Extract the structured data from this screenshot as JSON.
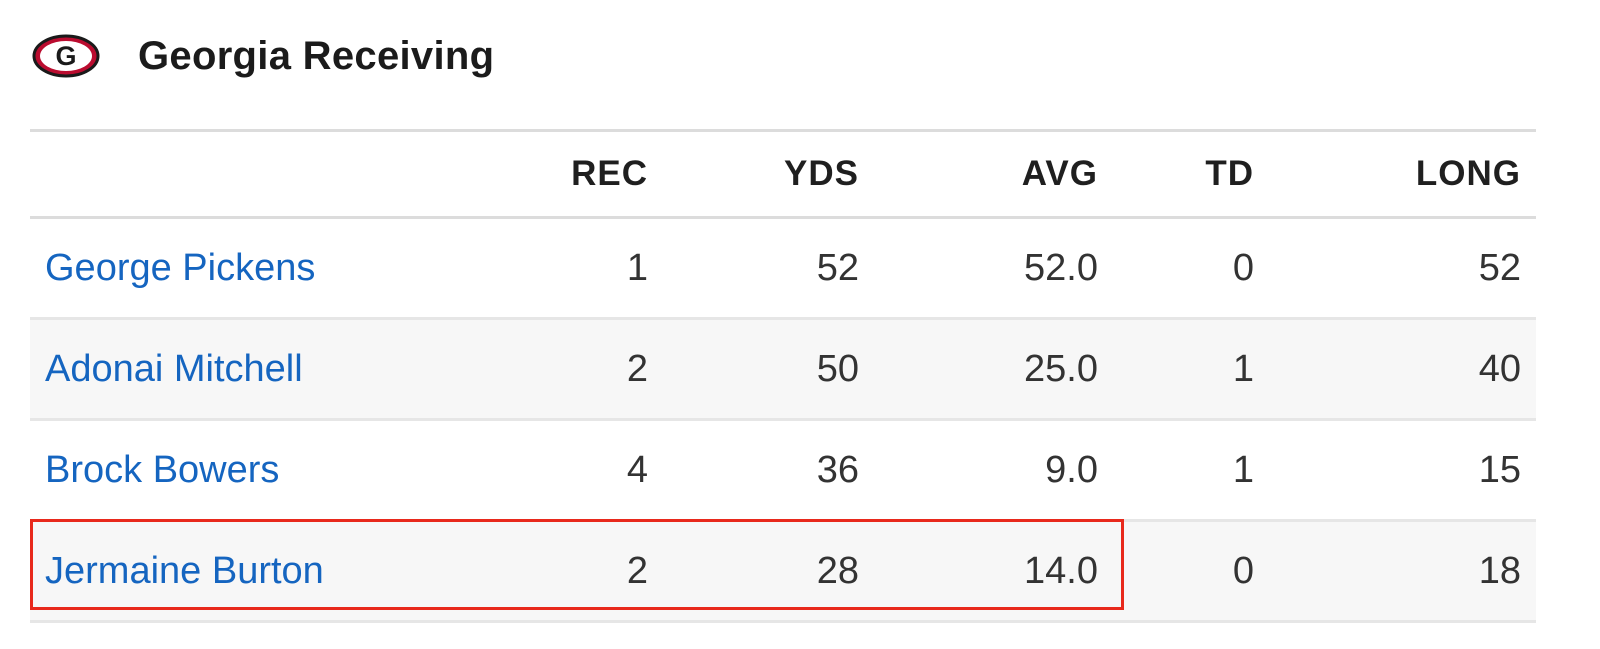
{
  "header": {
    "title": "Georgia Receiving",
    "logo_icon": "georgia-g-logo-icon",
    "logo_letter": "G"
  },
  "table": {
    "columns": [
      "REC",
      "YDS",
      "AVG",
      "TD",
      "LONG"
    ],
    "rows": [
      {
        "name": "George Pickens",
        "rec": "1",
        "yds": "52",
        "avg": "52.0",
        "td": "0",
        "long": "52"
      },
      {
        "name": "Adonai Mitchell",
        "rec": "2",
        "yds": "50",
        "avg": "25.0",
        "td": "1",
        "long": "40"
      },
      {
        "name": "Brock Bowers",
        "rec": "4",
        "yds": "36",
        "avg": "9.0",
        "td": "1",
        "long": "15"
      },
      {
        "name": "Jermaine Burton",
        "rec": "2",
        "yds": "28",
        "avg": "14.0",
        "td": "0",
        "long": "18"
      }
    ]
  },
  "colors": {
    "link": "#1565c0",
    "highlight": "#e8291c",
    "logo_red": "#ba0c2f"
  }
}
